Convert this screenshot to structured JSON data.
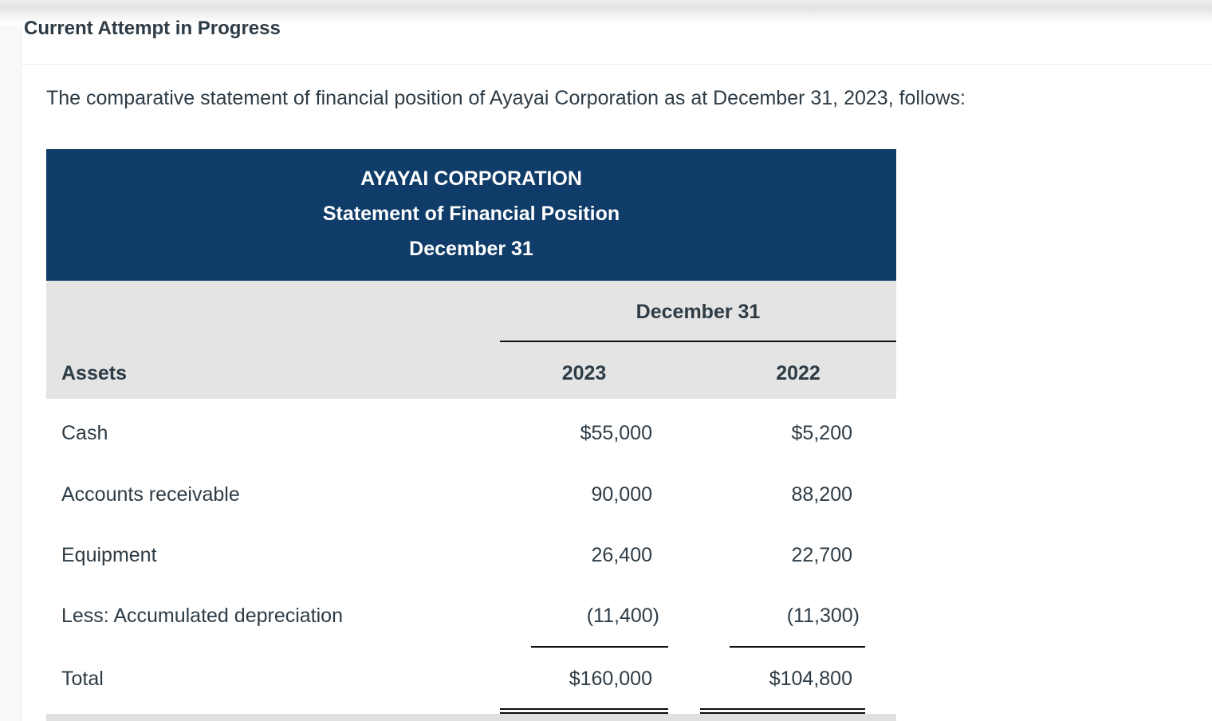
{
  "header": {
    "title": "Current Attempt in Progress"
  },
  "question": {
    "intro": "The comparative statement of financial position of Ayayai Corporation as at December 31, 2023, follows:"
  },
  "statement": {
    "title_lines": {
      "company": "AYAYAI CORPORATION",
      "statement_name": "Statement of Financial Position",
      "date": "December 31"
    },
    "column_group_header": "December 31",
    "section_header": "Assets",
    "columns": {
      "col1": "2023",
      "col2": "2022"
    },
    "rows": [
      {
        "label": "Cash",
        "y2023": "$55,000",
        "y2022": "$5,200"
      },
      {
        "label": "Accounts receivable",
        "y2023": "90,000",
        "y2022": "88,200"
      },
      {
        "label": "Equipment",
        "y2023": "26,400",
        "y2022": "22,700"
      },
      {
        "label": "Less: Accumulated depreciation",
        "y2023": "(11,400)",
        "y2022": "(11,300)"
      },
      {
        "label": "Total",
        "y2023": "$160,000",
        "y2022": "$104,800"
      }
    ],
    "colors": {
      "header_background": "#0f3c68",
      "band_background": "#e4e4e4",
      "text": "#2d3b45",
      "rule": "#0d0d0d"
    }
  }
}
